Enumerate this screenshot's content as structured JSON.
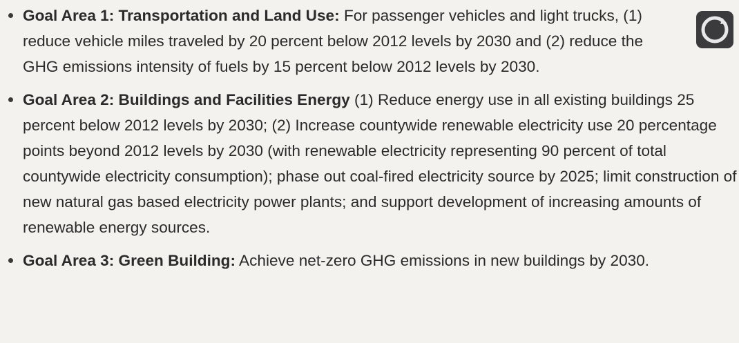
{
  "items": [
    {
      "label": "Goal Area 1: Transportation and Land Use:",
      "text": "For passenger vehicles and light trucks, (1) reduce vehicle miles traveled by 20 percent below 2012 levels by 2030 and (2) reduce the GHG emissions intensity of fuels by 15 percent below 2012 levels by 2030."
    },
    {
      "label": "Goal Area 2: Buildings and Facilities Energy",
      "text": "(1) Reduce energy use in all existing buildings 25 percent below 2012 levels by 2030; (2) Increase countywide renewable electricity use 20 percentage points beyond 2012 levels by 2030 (with renewable electricity representing 90 percent of total countywide electricity consumption); phase out coal-fired electricity source by 2025; limit construction of new natural gas based electricity power plants; and support development of increasing amounts of renewable energy sources."
    },
    {
      "label": "Goal Area 3: Green Building:",
      "text": "Achieve net-zero GHG emissions in new buildings by 2030."
    }
  ]
}
